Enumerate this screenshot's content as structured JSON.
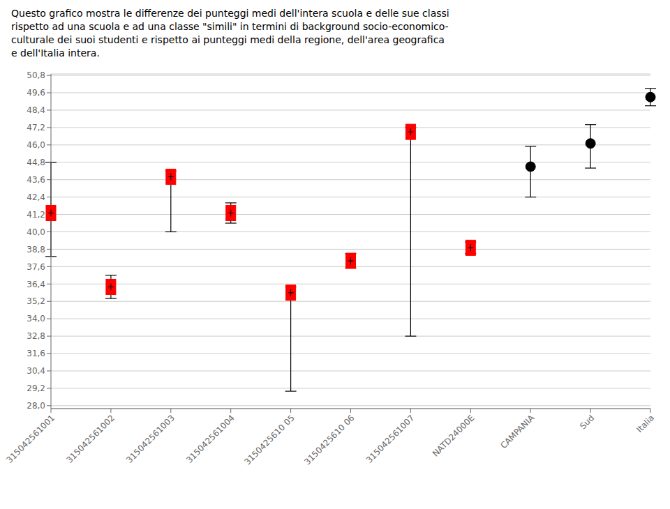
{
  "chart_data": {
    "type": "scatter",
    "title": "Questo grafico mostra le differenze dei punteggi medi dell'intera scuola e delle sue classi\nrispetto ad una scuola e ad una classe \"simili\" in termini di background socio-economico-\nculturale dei suoi studenti e rispetto ai punteggi medi della regione, dell'area geografica\ne dell'Italia intera.",
    "categories": [
      "315042561001",
      "315042561002",
      "315042561003",
      "315042561004",
      "3150425610 05",
      "3150425610 06",
      "315042561007",
      "NATD24000E",
      "CAMPANIA",
      "Sud",
      "Italia"
    ],
    "series": [
      {
        "color": "red",
        "marker": "square",
        "values": [
          41.3,
          36.2,
          43.8,
          41.3,
          35.8,
          38.0,
          46.9,
          38.9,
          null,
          null,
          null
        ],
        "yerr_low": [
          3.0,
          0.8,
          3.8,
          0.7,
          6.8,
          0.5,
          14.1,
          0.4,
          null,
          null,
          null
        ],
        "yerr_high": [
          3.5,
          0.8,
          0.4,
          0.7,
          0.4,
          0.5,
          0.3,
          0.4,
          null,
          null,
          null
        ]
      },
      {
        "color": "black",
        "marker": "circle",
        "values": [
          null,
          null,
          null,
          null,
          null,
          null,
          null,
          null,
          44.5,
          46.1,
          49.3
        ],
        "yerr_low": [
          null,
          null,
          null,
          null,
          null,
          null,
          null,
          null,
          2.1,
          1.7,
          0.6
        ],
        "yerr_high": [
          null,
          null,
          null,
          null,
          null,
          null,
          null,
          null,
          1.4,
          1.3,
          0.6
        ]
      }
    ],
    "ylim": [
      27.8,
      50.9
    ],
    "yticks": [
      {
        "value": 28.0,
        "label": "28,0"
      },
      {
        "value": 29.2,
        "label": "29,2"
      },
      {
        "value": 30.4,
        "label": "30,4"
      },
      {
        "value": 31.6,
        "label": "31,6"
      },
      {
        "value": 32.8,
        "label": "32,8"
      },
      {
        "value": 34.0,
        "label": "34,0"
      },
      {
        "value": 35.2,
        "label": "35,2"
      },
      {
        "value": 36.4,
        "label": "36,4"
      },
      {
        "value": 37.6,
        "label": "37,6"
      },
      {
        "value": 38.8,
        "label": "38,8"
      },
      {
        "value": 40.0,
        "label": "40,0"
      },
      {
        "value": 41.2,
        "label": "41,2"
      },
      {
        "value": 42.4,
        "label": "42,4"
      },
      {
        "value": 43.6,
        "label": "43,6"
      },
      {
        "value": 44.8,
        "label": "44,8"
      },
      {
        "value": 46.0,
        "label": "46,0"
      },
      {
        "value": 47.2,
        "label": "47,2"
      },
      {
        "value": 48.4,
        "label": "48,4"
      },
      {
        "value": 49.6,
        "label": "49,6"
      },
      {
        "value": 50.8,
        "label": "50,8"
      }
    ],
    "grid": true
  }
}
